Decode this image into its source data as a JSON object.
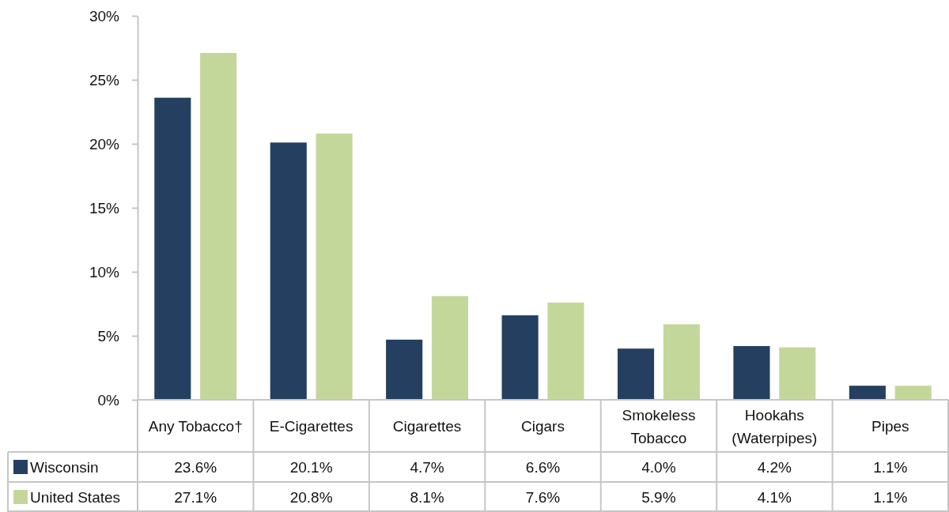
{
  "chart_data": {
    "type": "bar",
    "categories": [
      "Any Tobacco†",
      "E-Cigarettes",
      "Cigarettes",
      "Cigars",
      "Smokeless Tobacco",
      "Hookahs (Waterpipes)",
      "Pipes"
    ],
    "series": [
      {
        "name": "Wisconsin",
        "color": "#243f60",
        "values": [
          23.6,
          20.1,
          4.7,
          6.6,
          4.0,
          4.2,
          1.1
        ],
        "value_labels": [
          "23.6%",
          "20.1%",
          "4.7%",
          "6.6%",
          "4.0%",
          "4.2%",
          "1.1%"
        ]
      },
      {
        "name": "United States",
        "color": "#c4d79b",
        "values": [
          27.1,
          20.8,
          8.1,
          7.6,
          5.9,
          4.1,
          1.1
        ],
        "value_labels": [
          "27.1%",
          "20.8%",
          "8.1%",
          "7.6%",
          "5.9%",
          "4.1%",
          "1.1%"
        ]
      }
    ],
    "ylim": [
      0,
      30
    ],
    "yticks": [
      {
        "value": 0,
        "label": "0%"
      },
      {
        "value": 5,
        "label": "5%"
      },
      {
        "value": 10,
        "label": "10%"
      },
      {
        "value": 15,
        "label": "15%"
      },
      {
        "value": 20,
        "label": "20%"
      },
      {
        "value": 25,
        "label": "25%"
      },
      {
        "value": 30,
        "label": "30%"
      }
    ],
    "legend": "bottom"
  }
}
